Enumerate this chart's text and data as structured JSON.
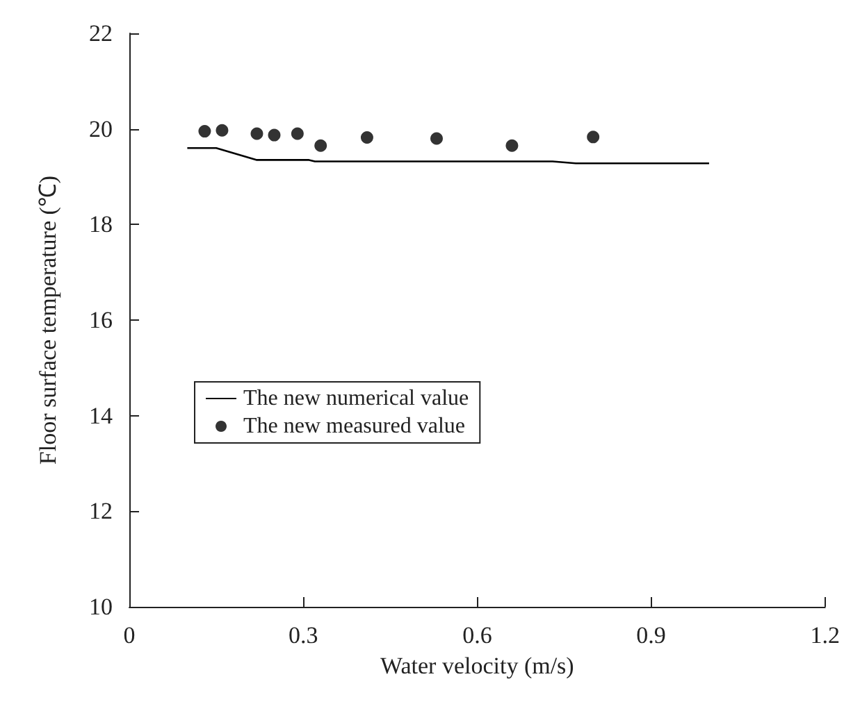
{
  "chart_data": {
    "type": "line",
    "xlabel": "Water velocity (m/s)",
    "ylabel": "Floor surface temperature (℃)",
    "xlim": [
      0,
      1.2
    ],
    "xticks": [
      0,
      0.3,
      0.6,
      0.9,
      1.2
    ],
    "ylim": [
      10,
      22
    ],
    "yticks": [
      10,
      12,
      14,
      16,
      18,
      20,
      22
    ],
    "grid": false,
    "legend": "left",
    "series": [
      {
        "name": "The new numerical value",
        "color": "#000000",
        "marker": "none",
        "line_style": "solid",
        "x": [
          0.1,
          0.15,
          0.22,
          0.31,
          0.32,
          0.73,
          0.77,
          1.0
        ],
        "values": [
          19.6,
          19.6,
          19.35,
          19.35,
          19.32,
          19.32,
          19.28,
          19.28
        ]
      },
      {
        "name": "The new measured value",
        "type": "scatter",
        "color": "#000000",
        "marker": "circle",
        "x": [
          0.13,
          0.16,
          0.22,
          0.25,
          0.29,
          0.33,
          0.41,
          0.53,
          0.66,
          0.8
        ],
        "values": [
          19.95,
          19.97,
          19.9,
          19.87,
          19.9,
          19.65,
          19.82,
          19.8,
          19.65,
          19.83
        ]
      }
    ]
  }
}
